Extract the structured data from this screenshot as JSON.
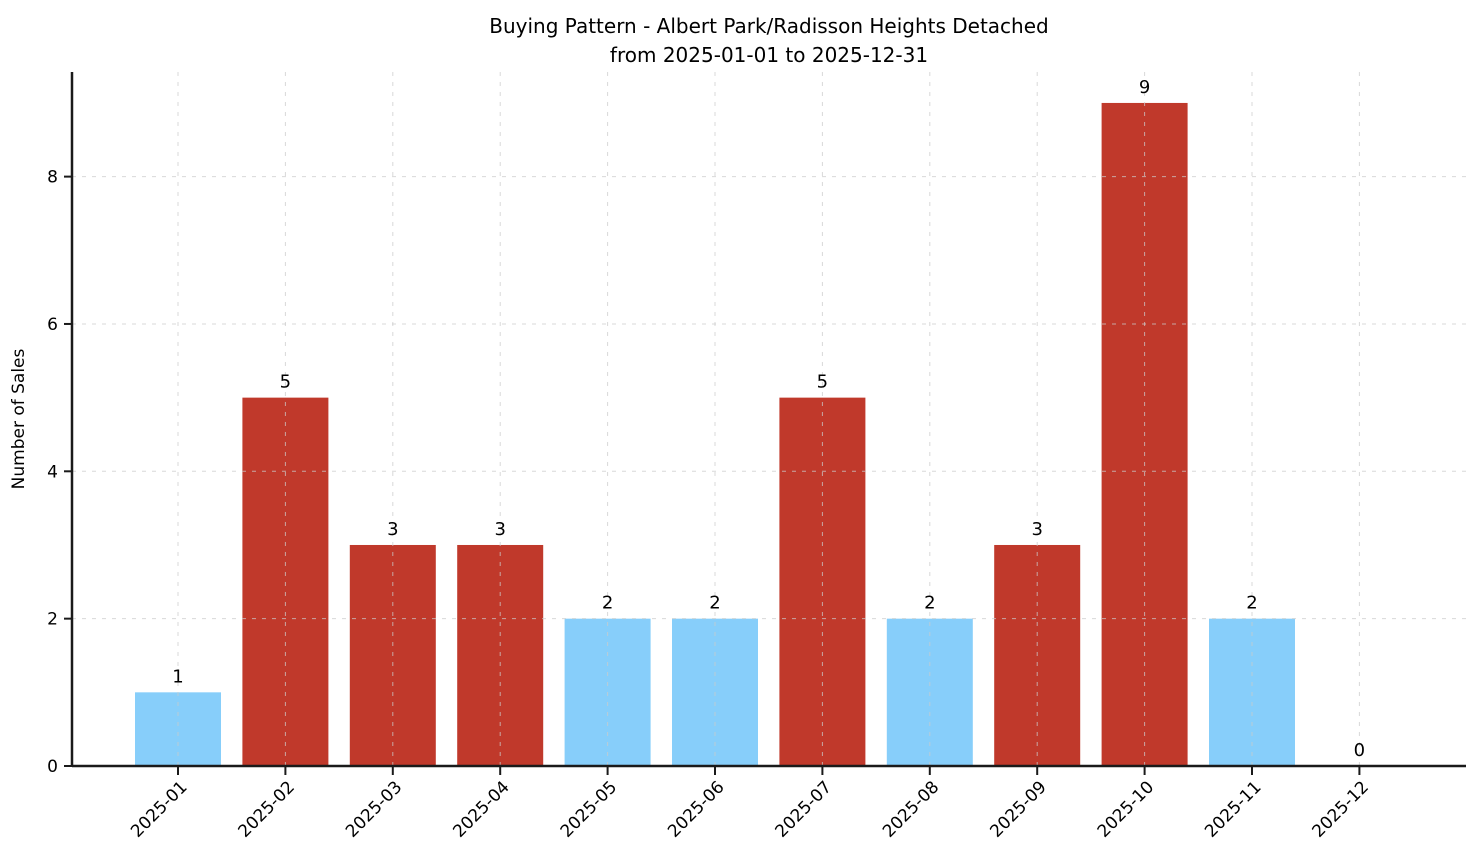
{
  "title": {
    "line1": "Buying Pattern - Albert Park/Radisson Heights Detached",
    "line2": "from 2025-01-01 to 2025-12-31"
  },
  "chart_data": {
    "type": "bar",
    "title": "Buying Pattern - Albert Park/Radisson Heights Detached from 2025-01-01 to 2025-12-31",
    "categories": [
      "2025-01",
      "2025-02",
      "2025-03",
      "2025-04",
      "2025-05",
      "2025-06",
      "2025-07",
      "2025-08",
      "2025-09",
      "2025-10",
      "2025-11",
      "2025-12"
    ],
    "values": [
      1,
      5,
      3,
      3,
      2,
      2,
      5,
      2,
      3,
      9,
      2,
      0
    ],
    "bar_colors": [
      "#87CEFA",
      "#C0392B",
      "#C0392B",
      "#C0392B",
      "#87CEFA",
      "#87CEFA",
      "#C0392B",
      "#87CEFA",
      "#C0392B",
      "#C0392B",
      "#87CEFA",
      "#87CEFA"
    ],
    "value_labels": [
      "1",
      "5",
      "3",
      "3",
      "2",
      "2",
      "5",
      "2",
      "3",
      "9",
      "2",
      "0"
    ],
    "xlabel": "",
    "ylabel": "Number of Sales",
    "ylim": [
      0,
      9.42
    ],
    "yticks": [
      0,
      2,
      4,
      6,
      8
    ],
    "grid": true,
    "grid_style": "dashed",
    "legend": false,
    "xtick_rotation_deg": 45
  },
  "colors": {
    "background": "#ffffff",
    "bar_low": "#87CEFA",
    "bar_high": "#C0392B",
    "grid": "#cccccc",
    "axis": "#1a1a1a",
    "text": "#000000"
  }
}
